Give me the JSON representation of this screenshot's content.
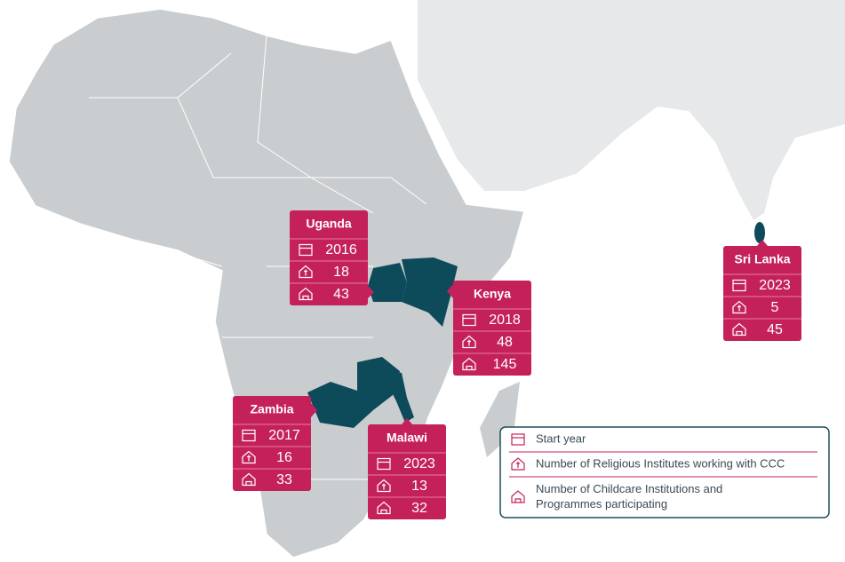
{
  "countries": [
    {
      "name": "Uganda",
      "start_year": 2016,
      "religious_institutes": 18,
      "childcare_institutions": 43
    },
    {
      "name": "Kenya",
      "start_year": 2018,
      "religious_institutes": 48,
      "childcare_institutions": 145
    },
    {
      "name": "Zambia",
      "start_year": 2017,
      "religious_institutes": 16,
      "childcare_institutions": 33
    },
    {
      "name": "Malawi",
      "start_year": 2023,
      "religious_institutes": 13,
      "childcare_institutions": 32
    },
    {
      "name": "Sri Lanka",
      "start_year": 2023,
      "religious_institutes": 5,
      "childcare_institutions": 45
    }
  ],
  "legend": {
    "items": [
      "Start year",
      "Number of Religious Institutes working with CCC",
      "Number of Childcare Institutions and Programmes participating"
    ]
  }
}
